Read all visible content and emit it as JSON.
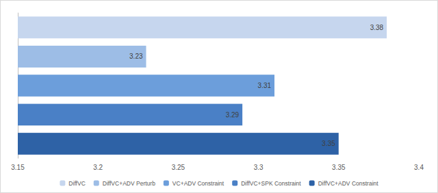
{
  "chart_data": {
    "type": "bar",
    "orientation": "horizontal",
    "categories": [
      "DiffVC",
      "DiffVC+ADV Perturb",
      "VC+ADV Constraint",
      "DiffVC+SPK Constraint",
      "DiffVC+ADV Constraint"
    ],
    "values": [
      3.38,
      3.23,
      3.31,
      3.29,
      3.35
    ],
    "colors": [
      "#c6d6ee",
      "#9dbde6",
      "#6c9edb",
      "#4a80c6",
      "#2e62a6"
    ],
    "xlim": [
      3.15,
      3.4
    ],
    "xticks": [
      3.15,
      3.2,
      3.25,
      3.3,
      3.35,
      3.4
    ],
    "grid": false,
    "legend": "bottom",
    "data_labels": true,
    "tick_labels": "x"
  }
}
